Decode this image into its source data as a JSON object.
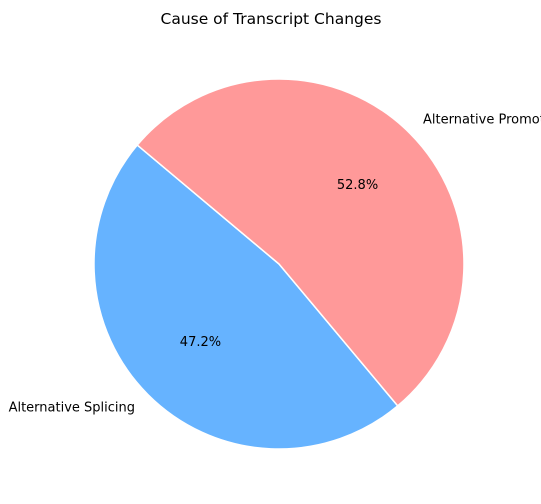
{
  "chart_data": {
    "type": "pie",
    "title": "Cause of Transcript Changes",
    "categories": [
      "Alternative Splicing",
      "Alternative Promoters"
    ],
    "values": [
      47.2,
      52.8
    ],
    "percent_labels": [
      "47.2%",
      "52.8%"
    ],
    "colors": [
      "#66b3ff",
      "#ff9999"
    ],
    "edge_color": "#ffffff",
    "start_angle_deg": 140,
    "direction": "counterclockwise",
    "legend": "none"
  }
}
